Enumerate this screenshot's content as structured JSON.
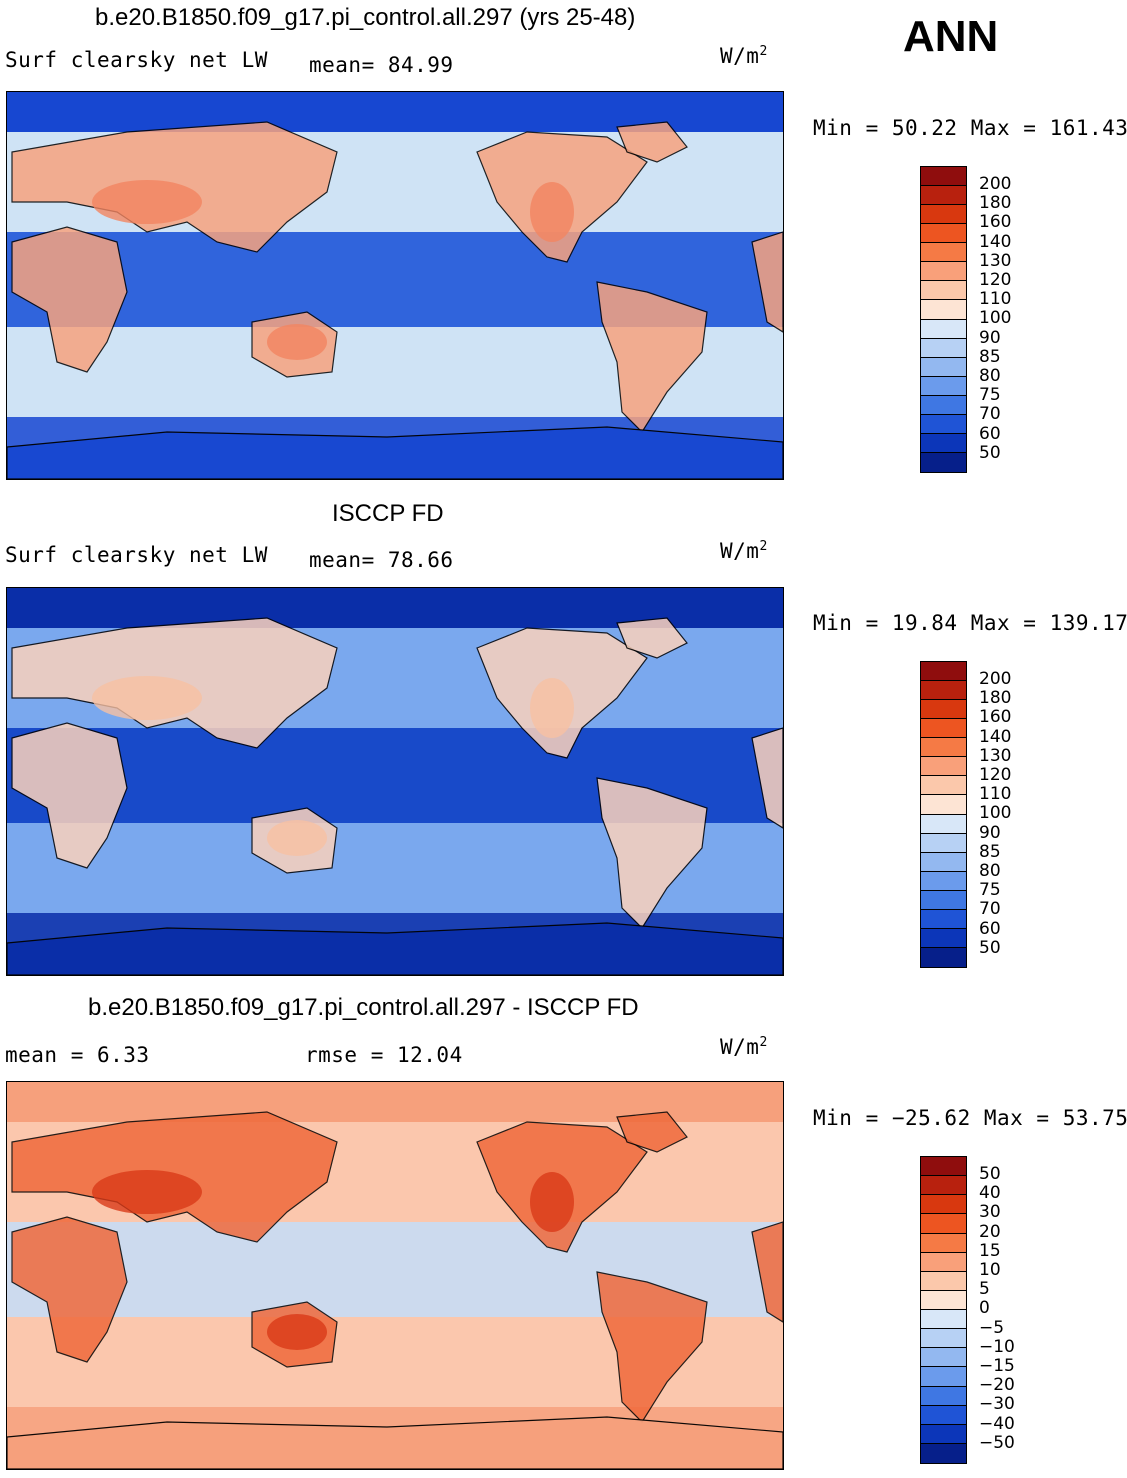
{
  "season": "ANN",
  "panels": [
    {
      "title": "b.e20.B1850.f09_g17.pi_control.all.297 (yrs 25-48)",
      "left_text": "Surf clearsky net LW",
      "mid_text": "mean=  84.99",
      "units": "W/m",
      "units_sup": "2",
      "minmax": "Min =  50.22 Max = 161.43",
      "colorbar_labels": [
        "200",
        "180",
        "160",
        "140",
        "130",
        "120",
        "110",
        "100",
        "90",
        "85",
        "80",
        "75",
        "70",
        "60",
        "50"
      ],
      "map": {
        "ocean": "#cfe3f5",
        "tropics": "#1e55d9",
        "polar": "#1747d1",
        "land": "#f7a37f",
        "desert": "#f28560"
      }
    },
    {
      "title": "ISCCP FD",
      "left_text": "Surf clearsky net LW",
      "mid_text": "mean=  78.66",
      "units": "W/m",
      "units_sup": "2",
      "minmax": "Min =  19.84 Max = 139.17",
      "colorbar_labels": [
        "200",
        "180",
        "160",
        "140",
        "130",
        "120",
        "110",
        "100",
        "90",
        "85",
        "80",
        "75",
        "70",
        "60",
        "50"
      ],
      "map": {
        "ocean": "#7aa8ee",
        "tropics": "#0d3fc4",
        "polar": "#0a2ea8",
        "land": "#fbd2bc",
        "desert": "#f8c0a2"
      }
    },
    {
      "title": "b.e20.B1850.f09_g17.pi_control.all.297 - ISCCP FD",
      "left_text": "mean =    6.33",
      "mid_text": "rmse =   12.04",
      "units": "W/m",
      "units_sup": "2",
      "minmax": "Min = −25.62 Max =  53.75",
      "colorbar_labels": [
        "50",
        "40",
        "30",
        "20",
        "15",
        "10",
        "5",
        "0",
        "−5",
        "−10",
        "−15",
        "−20",
        "−30",
        "−40",
        "−50"
      ],
      "map": {
        "ocean": "#fbc7ad",
        "tropics": "#c6dcf5",
        "polar": "#f6a07c",
        "land": "#f06a3c",
        "desert": "#d93a18"
      }
    }
  ],
  "colorbar_colors": [
    "#8f0d0d",
    "#b8210e",
    "#d8380f",
    "#ed5521",
    "#f57a45",
    "#f9a07a",
    "#fbc8ab",
    "#fde4d4",
    "#d8e7f8",
    "#b7d1f4",
    "#93b8f0",
    "#6b9bec",
    "#3f77e3",
    "#1f54d6",
    "#0c36b9",
    "#061f8a"
  ]
}
